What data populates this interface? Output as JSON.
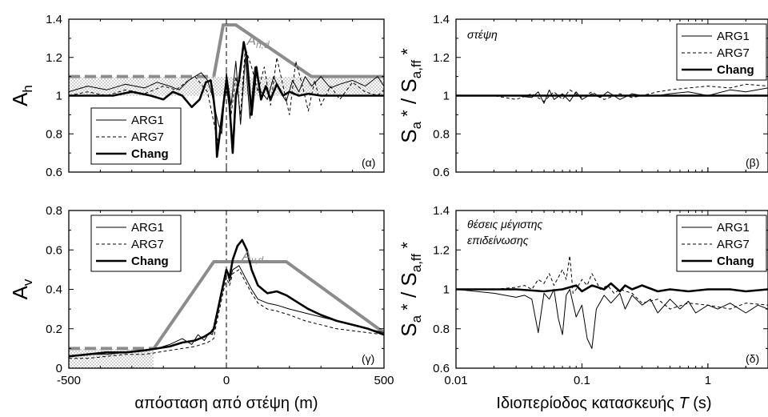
{
  "colors": {
    "envelope": "#8c8c8c",
    "lines": "#000000",
    "stipple": "#9a9a9a"
  },
  "chart_data": [
    {
      "id": "a",
      "type": "line",
      "panel_label": "(α)",
      "ylabel": "A_h",
      "ylabel_main": "A",
      "ylabel_sub": "h",
      "xlim": [
        -500,
        500
      ],
      "ylim": [
        0.6,
        1.4
      ],
      "yticks": [
        "0.6",
        "0.8",
        "1",
        "1.2",
        "1.4"
      ],
      "legend": [
        "ARG1",
        "ARG7",
        "Chang"
      ],
      "legend_position": "bottom-left",
      "envelope_label_main": "A",
      "envelope_label_sub": "h,d",
      "envelope": {
        "x": [
          -500,
          -40,
          -40,
          -10,
          30,
          270,
          500
        ],
        "y": [
          1.1,
          1.1,
          1.1,
          1.37,
          1.37,
          1.1,
          1.1
        ]
      },
      "shaded_band": {
        "x": [
          -500,
          500
        ],
        "y": [
          1.0,
          1.1
        ]
      },
      "series": [
        {
          "name": "ARG1",
          "style": "thin",
          "x": [
            -500,
            -440,
            -380,
            -320,
            -260,
            -220,
            -180,
            -150,
            -120,
            -100,
            -80,
            -60,
            -45,
            -35,
            -25,
            -15,
            0,
            15,
            30,
            45,
            60,
            75,
            90,
            110,
            130,
            150,
            170,
            190,
            210,
            230,
            250,
            270,
            300,
            330,
            360,
            400,
            440,
            480,
            500
          ],
          "y": [
            1.02,
            1.05,
            1.03,
            1.06,
            1.04,
            1.07,
            1.05,
            1.03,
            1.08,
            1.1,
            1.12,
            1.08,
            1.0,
            0.92,
            0.85,
            0.8,
            1.12,
            0.95,
            1.18,
            0.85,
            1.2,
            0.88,
            1.15,
            1.02,
            0.98,
            1.1,
            1.02,
            0.97,
            1.08,
            1.02,
            1.1,
            1.05,
            1.1,
            1.04,
            1.06,
            1.08,
            1.05,
            1.1,
            1.05
          ]
        },
        {
          "name": "ARG7",
          "style": "dashed",
          "x": [
            -500,
            -440,
            -380,
            -320,
            -260,
            -200,
            -160,
            -120,
            -100,
            -80,
            -60,
            -45,
            -35,
            -25,
            0,
            15,
            30,
            45,
            60,
            80,
            100,
            120,
            140,
            160,
            180,
            200,
            220,
            240,
            260,
            280,
            300,
            330,
            360,
            400,
            440,
            480,
            500
          ],
          "y": [
            1.0,
            1.02,
            1.0,
            1.03,
            1.01,
            1.05,
            1.03,
            1.08,
            1.1,
            1.06,
            1.02,
            0.9,
            0.82,
            0.75,
            1.1,
            0.9,
            1.1,
            0.9,
            1.25,
            1.15,
            1.02,
            1.15,
            0.95,
            1.2,
            1.05,
            0.9,
            1.18,
            1.06,
            0.92,
            1.08,
            0.95,
            1.05,
            0.98,
            1.07,
            1.02,
            1.0,
            1.03
          ]
        },
        {
          "name": "Chang",
          "style": "thick",
          "x": [
            -500,
            -420,
            -360,
            -300,
            -240,
            -200,
            -170,
            -140,
            -110,
            -85,
            -65,
            -50,
            -42,
            -35,
            -30,
            0,
            10,
            20,
            30,
            40,
            55,
            65,
            80,
            95,
            110,
            125,
            140,
            160,
            180,
            200,
            230,
            260,
            300,
            350,
            400,
            450,
            500
          ],
          "y": [
            1.0,
            1.0,
            1.0,
            1.02,
            1.0,
            0.98,
            1.02,
            1.0,
            0.94,
            0.98,
            1.07,
            1.08,
            1.0,
            0.9,
            0.68,
            1.08,
            0.95,
            0.7,
            1.0,
            1.08,
            1.28,
            1.2,
            0.9,
            1.15,
            0.98,
            1.05,
            0.98,
            1.06,
            1.0,
            1.02,
            1.0,
            1.01,
            1.0,
            1.0,
            1.0,
            1.0,
            1.0
          ]
        }
      ]
    },
    {
      "id": "b",
      "type": "line",
      "panel_label": "(β)",
      "annotation": "στέψη",
      "ylabel_main": "S",
      "xscale": "log",
      "xlim": [
        0.01,
        3
      ],
      "ylim": [
        0.6,
        1.4
      ],
      "yticks": [
        "0.6",
        "0.8",
        "1",
        "1.2",
        "1.4"
      ],
      "legend": [
        "ARG1",
        "ARG7",
        "Chang"
      ],
      "legend_position": "top-right",
      "series": [
        {
          "name": "ARG1",
          "style": "thin",
          "x": [
            0.01,
            0.02,
            0.03,
            0.04,
            0.045,
            0.05,
            0.055,
            0.06,
            0.07,
            0.08,
            0.09,
            0.1,
            0.12,
            0.14,
            0.16,
            0.2,
            0.25,
            0.3,
            0.4,
            0.5,
            0.7,
            1,
            1.5,
            2,
            3
          ],
          "y": [
            1.0,
            1.0,
            1.0,
            0.99,
            1.02,
            0.96,
            1.03,
            0.98,
            1.01,
            0.97,
            1.02,
            0.98,
            1.01,
            0.99,
            1.02,
            0.98,
            1.01,
            1.0,
            1.0,
            1.01,
            1.02,
            1.0,
            1.03,
            1.02,
            1.04
          ]
        },
        {
          "name": "ARG7",
          "style": "dashed",
          "x": [
            0.01,
            0.02,
            0.03,
            0.04,
            0.05,
            0.06,
            0.07,
            0.08,
            0.1,
            0.12,
            0.15,
            0.2,
            0.25,
            0.3,
            0.4,
            0.5,
            0.7,
            1,
            1.5,
            2,
            3
          ],
          "y": [
            1.0,
            1.0,
            0.98,
            1.01,
            0.97,
            1.02,
            0.98,
            1.03,
            0.99,
            1.02,
            0.98,
            1.01,
            0.99,
            1.0,
            1.02,
            1.03,
            1.04,
            1.05,
            1.04,
            1.06,
            1.05
          ]
        },
        {
          "name": "Chang",
          "style": "thick",
          "x": [
            0.01,
            0.03,
            0.05,
            0.1,
            0.2,
            0.3,
            0.5,
            1,
            2,
            3
          ],
          "y": [
            1.0,
            1.0,
            1.0,
            1.0,
            1.0,
            1.0,
            1.0,
            1.0,
            1.0,
            1.0
          ]
        }
      ]
    },
    {
      "id": "c",
      "type": "line",
      "panel_label": "(γ)",
      "ylabel_main": "A",
      "ylabel_sub": "v",
      "xlabel": "απόσταση από στέψη (m)",
      "xlim": [
        -500,
        500
      ],
      "xticks": [
        "-500",
        "0",
        "500"
      ],
      "ylim": [
        0,
        0.8
      ],
      "yticks": [
        "0",
        "0.2",
        "0.4",
        "0.6",
        "0.8"
      ],
      "legend": [
        "ARG1",
        "ARG7",
        "Chang"
      ],
      "legend_position": "top-left",
      "envelope_label_main": "A",
      "envelope_label_sub": "v,d",
      "envelope": {
        "x": [
          -500,
          -230,
          -230,
          -40,
          190,
          500
        ],
        "y": [
          0.1,
          0.1,
          0.1,
          0.54,
          0.54,
          0.18
        ]
      },
      "shaded_band": {
        "x": [
          -500,
          -230
        ],
        "y": [
          0.0,
          0.1
        ]
      },
      "series": [
        {
          "name": "ARG1",
          "style": "thin",
          "x": [
            -500,
            -440,
            -380,
            -320,
            -260,
            -220,
            -180,
            -140,
            -110,
            -90,
            -70,
            -55,
            -45,
            -35,
            0,
            10,
            20,
            40,
            60,
            80,
            100,
            130,
            160,
            200,
            250,
            300,
            350,
            400,
            450,
            500
          ],
          "y": [
            0.06,
            0.07,
            0.07,
            0.08,
            0.09,
            0.1,
            0.12,
            0.15,
            0.12,
            0.17,
            0.14,
            0.18,
            0.17,
            0.22,
            0.5,
            0.44,
            0.5,
            0.52,
            0.46,
            0.4,
            0.35,
            0.33,
            0.32,
            0.3,
            0.28,
            0.26,
            0.24,
            0.22,
            0.2,
            0.18
          ]
        },
        {
          "name": "ARG7",
          "style": "dashed",
          "x": [
            -500,
            -440,
            -380,
            -320,
            -260,
            -220,
            -180,
            -140,
            -100,
            -60,
            -40,
            -35,
            0,
            10,
            20,
            40,
            60,
            80,
            100,
            130,
            160,
            200,
            250,
            300,
            350,
            400,
            450,
            500
          ],
          "y": [
            0.05,
            0.05,
            0.06,
            0.07,
            0.07,
            0.08,
            0.09,
            0.1,
            0.11,
            0.13,
            0.15,
            0.2,
            0.46,
            0.42,
            0.48,
            0.5,
            0.44,
            0.38,
            0.33,
            0.3,
            0.29,
            0.27,
            0.24,
            0.22,
            0.2,
            0.19,
            0.18,
            0.17
          ]
        },
        {
          "name": "Chang",
          "style": "thick",
          "x": [
            -500,
            -440,
            -380,
            -320,
            -260,
            -220,
            -180,
            -140,
            -100,
            -70,
            -50,
            -40,
            0,
            10,
            20,
            35,
            50,
            65,
            80,
            100,
            130,
            160,
            190,
            220,
            260,
            300,
            350,
            400,
            450,
            500
          ],
          "y": [
            0.06,
            0.07,
            0.08,
            0.08,
            0.09,
            0.1,
            0.11,
            0.13,
            0.14,
            0.16,
            0.18,
            0.2,
            0.5,
            0.46,
            0.55,
            0.62,
            0.65,
            0.6,
            0.5,
            0.42,
            0.38,
            0.39,
            0.37,
            0.34,
            0.3,
            0.27,
            0.24,
            0.22,
            0.2,
            0.17
          ]
        }
      ]
    },
    {
      "id": "d",
      "type": "line",
      "panel_label": "(δ)",
      "annotation_lines": [
        "θέσεις μέγιστης",
        "επιδείνωσης"
      ],
      "ylabel_main": "S",
      "xscale": "log",
      "xlabel": "Ιδιοπερίοδος κατασκευής",
      "xlabel_var": "T",
      "xlabel_unit": "(s)",
      "xlim": [
        0.01,
        3
      ],
      "xticks": [
        "0.01",
        "0.1",
        "1"
      ],
      "ylim": [
        0.6,
        1.4
      ],
      "yticks": [
        "0.6",
        "0.8",
        "1",
        "1.2",
        "1.4"
      ],
      "legend": [
        "ARG1",
        "ARG7",
        "Chang"
      ],
      "legend_position": "top-right",
      "series": [
        {
          "name": "ARG1",
          "style": "thin",
          "x": [
            0.01,
            0.02,
            0.03,
            0.035,
            0.04,
            0.045,
            0.05,
            0.055,
            0.06,
            0.065,
            0.07,
            0.075,
            0.08,
            0.09,
            0.1,
            0.11,
            0.12,
            0.13,
            0.15,
            0.17,
            0.2,
            0.22,
            0.25,
            0.3,
            0.35,
            0.4,
            0.5,
            0.6,
            0.7,
            0.8,
            1,
            1.2,
            1.5,
            2,
            2.5,
            3
          ],
          "y": [
            1.0,
            0.98,
            0.96,
            0.97,
            0.95,
            0.78,
            0.98,
            0.95,
            1.0,
            0.85,
            0.77,
            0.97,
            1.0,
            0.86,
            0.92,
            0.75,
            0.7,
            0.9,
            0.97,
            0.93,
            0.98,
            0.9,
            0.97,
            0.92,
            0.95,
            0.88,
            0.95,
            0.9,
            0.94,
            0.88,
            0.92,
            0.9,
            0.93,
            0.88,
            0.92,
            0.9
          ]
        },
        {
          "name": "ARG7",
          "style": "dashed",
          "x": [
            0.01,
            0.02,
            0.03,
            0.035,
            0.04,
            0.045,
            0.05,
            0.055,
            0.06,
            0.07,
            0.075,
            0.08,
            0.085,
            0.09,
            0.1,
            0.11,
            0.12,
            0.14,
            0.16,
            0.18,
            0.2,
            0.25,
            0.3,
            0.4,
            0.5,
            0.7,
            1,
            1.5,
            2,
            3
          ],
          "y": [
            1.0,
            1.0,
            1.01,
            1.02,
            1.0,
            1.05,
            1.03,
            1.08,
            1.02,
            1.1,
            1.05,
            1.17,
            0.98,
            1.0,
            1.05,
            1.02,
            1.08,
            1.0,
            1.02,
            0.98,
            1.0,
            0.98,
            0.93,
            0.95,
            0.9,
            0.93,
            0.92,
            0.9,
            0.93,
            0.92
          ]
        },
        {
          "name": "Chang",
          "style": "thick",
          "x": [
            0.01,
            0.02,
            0.03,
            0.05,
            0.07,
            0.09,
            0.1,
            0.12,
            0.15,
            0.17,
            0.2,
            0.22,
            0.25,
            0.3,
            0.4,
            0.5,
            0.7,
            1,
            1.5,
            2,
            3
          ],
          "y": [
            1.0,
            1.0,
            1.0,
            0.99,
            1.0,
            1.02,
            0.99,
            1.02,
            1.0,
            1.03,
            0.99,
            1.02,
            1.0,
            1.02,
            0.99,
            1.0,
            0.99,
            1.0,
            1.0,
            0.99,
            1.0
          ]
        }
      ]
    }
  ]
}
